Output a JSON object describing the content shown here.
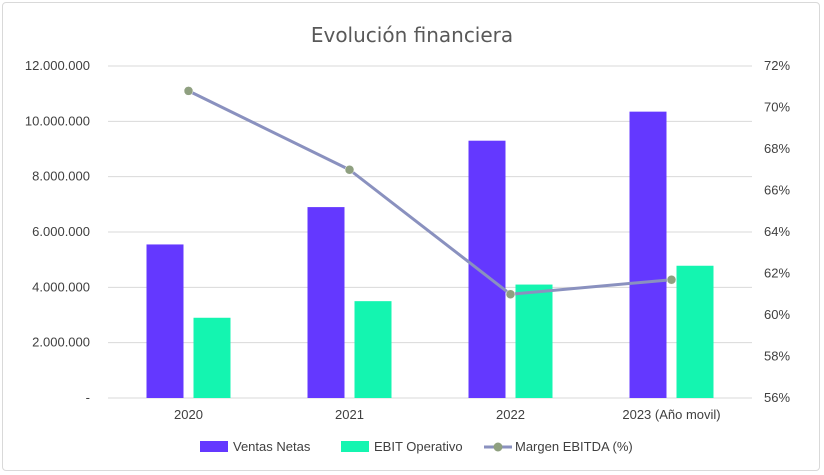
{
  "chart_data": {
    "type": "bar",
    "title": "Evolución financiera",
    "categories": [
      "2020",
      "2021",
      "2022",
      "2023 (Año movil)"
    ],
    "y_left": {
      "ticks": [
        "-",
        "2.000.000",
        "4.000.000",
        "6.000.000",
        "8.000.000",
        "10.000.000",
        "12.000.000"
      ],
      "ylim": [
        0,
        12000000
      ]
    },
    "y_right": {
      "ticks": [
        "56%",
        "58%",
        "60%",
        "62%",
        "64%",
        "66%",
        "68%",
        "70%",
        "72%"
      ],
      "ylim": [
        56,
        72
      ]
    },
    "series": [
      {
        "name": "Ventas Netas",
        "type": "bar",
        "axis": "left",
        "color": "#6438FF",
        "values": [
          5550000,
          6900000,
          9300000,
          10350000
        ]
      },
      {
        "name": "EBIT Operativo",
        "type": "bar",
        "axis": "left",
        "color": "#14F5B0",
        "values": [
          2900000,
          3500000,
          4100000,
          4780000
        ]
      },
      {
        "name": "Margen EBITDA (%)",
        "type": "line",
        "axis": "right",
        "color": "#8A91BF",
        "marker_color": "#8FA080",
        "values": [
          70.8,
          67.0,
          61.0,
          61.7
        ]
      }
    ],
    "grid": true,
    "legend_position": "bottom"
  }
}
